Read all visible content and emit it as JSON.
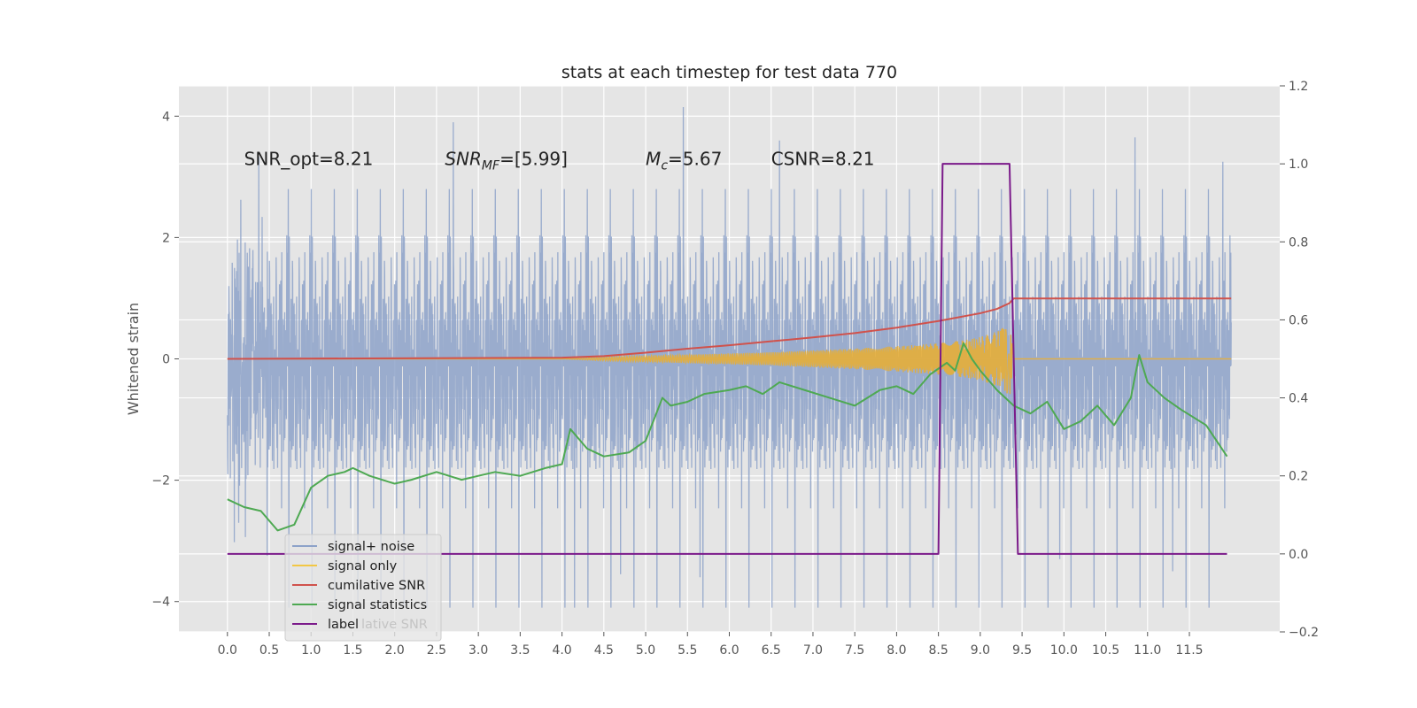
{
  "chart_data": {
    "type": "line",
    "title": "stats at each timestep for test data 770",
    "ylabel": "Whitened strain",
    "xlim": [
      -0.58,
      12.58
    ],
    "ylim": [
      -4.5,
      4.5
    ],
    "y2lim": [
      -0.2,
      1.2
    ],
    "xticks": [
      0.0,
      0.5,
      1.0,
      1.5,
      2.0,
      2.5,
      3.0,
      3.5,
      4.0,
      4.5,
      5.0,
      5.5,
      6.0,
      6.5,
      7.0,
      7.5,
      8.0,
      8.5,
      9.0,
      9.5,
      10.0,
      10.5,
      11.0,
      11.5
    ],
    "xtick_labels": [
      "0.0",
      "0.5",
      "1.0",
      "1.5",
      "2.0",
      "2.5",
      "3.0",
      "3.5",
      "4.0",
      "4.5",
      "5.0",
      "5.5",
      "6.0",
      "6.5",
      "7.0",
      "7.5",
      "8.0",
      "8.5",
      "9.0",
      "9.5",
      "10.0",
      "10.5",
      "11.0",
      "11.5"
    ],
    "yticks": [
      -4,
      -2,
      0,
      2,
      4
    ],
    "ytick_labels": [
      "−4",
      "−2",
      "0",
      "2",
      "4"
    ],
    "y2ticks": [
      -0.2,
      0.0,
      0.2,
      0.4,
      0.6,
      0.8,
      1.0,
      1.2
    ],
    "y2tick_labels": [
      "−0.2",
      "0.0",
      "0.2",
      "0.4",
      "0.6",
      "0.8",
      "1.0",
      "1.2"
    ],
    "grid": true,
    "legend_position": "lower-left",
    "annotations": [
      {
        "text": "SNR_opt=8.21",
        "x": 0.2,
        "y": 3.3
      },
      {
        "text": "SNR_MF=[5.99]",
        "x": 2.6,
        "y": 3.3
      },
      {
        "text": "M_c=5.67",
        "x": 5.0,
        "y": 3.3
      },
      {
        "text": "CSNR=8.21",
        "x": 6.5,
        "y": 3.3
      }
    ],
    "series": [
      {
        "name": "signal+ noise",
        "axis": "left",
        "color": "#8da2c9",
        "description_values": {
          "x_range": [
            0.0,
            12.0
          ],
          "typical_range": [
            -2.1,
            2.1
          ],
          "max": 4.15,
          "min": -4.1
        },
        "peaks": [
          [
            2.7,
            3.9
          ],
          [
            5.45,
            4.15
          ],
          [
            10.85,
            3.65
          ],
          [
            6.6,
            3.6
          ],
          [
            11.9,
            3.25
          ]
        ],
        "troughs": [
          [
            4.15,
            -4.1
          ],
          [
            11.3,
            -3.5
          ],
          [
            5.65,
            -3.6
          ],
          [
            4.7,
            -3.55
          ],
          [
            9.95,
            -3.3
          ]
        ]
      },
      {
        "name": "signal only",
        "axis": "left",
        "color": "#e5ae38",
        "x": [
          0.0,
          4.0,
          4.5,
          5.0,
          5.5,
          6.0,
          6.5,
          7.0,
          7.5,
          8.0,
          8.5,
          8.8,
          9.0,
          9.2,
          9.3,
          9.35,
          9.4,
          12.0
        ],
        "amplitude": [
          0.0,
          0.0,
          0.03,
          0.05,
          0.07,
          0.09,
          0.11,
          0.14,
          0.17,
          0.21,
          0.26,
          0.31,
          0.36,
          0.45,
          0.55,
          0.65,
          0.0,
          0.0
        ]
      },
      {
        "name": "cumilative SNR",
        "axis": "right",
        "color": "#d0524c",
        "x": [
          0.0,
          4.0,
          4.5,
          5.0,
          5.5,
          6.0,
          6.5,
          7.0,
          7.5,
          8.0,
          8.5,
          9.0,
          9.2,
          9.35,
          9.4,
          12.0
        ],
        "y": [
          0.5,
          0.503,
          0.507,
          0.516,
          0.526,
          0.535,
          0.545,
          0.555,
          0.566,
          0.58,
          0.597,
          0.617,
          0.628,
          0.643,
          0.655,
          0.655
        ]
      },
      {
        "name": "signal statistics",
        "axis": "right",
        "color": "#4ea952",
        "x": [
          0.0,
          0.2,
          0.4,
          0.6,
          0.8,
          1.0,
          1.2,
          1.4,
          1.5,
          1.7,
          2.0,
          2.2,
          2.5,
          2.8,
          3.0,
          3.2,
          3.5,
          3.8,
          4.0,
          4.1,
          4.3,
          4.5,
          4.8,
          5.0,
          5.2,
          5.3,
          5.5,
          5.7,
          6.0,
          6.2,
          6.4,
          6.6,
          6.9,
          7.2,
          7.5,
          7.8,
          8.0,
          8.2,
          8.4,
          8.6,
          8.7,
          8.8,
          8.9,
          9.0,
          9.2,
          9.4,
          9.6,
          9.8,
          10.0,
          10.2,
          10.4,
          10.6,
          10.8,
          10.9,
          11.0,
          11.2,
          11.4,
          11.7,
          11.95
        ],
        "y": [
          0.14,
          0.12,
          0.11,
          0.06,
          0.075,
          0.17,
          0.2,
          0.21,
          0.22,
          0.2,
          0.18,
          0.19,
          0.21,
          0.19,
          0.2,
          0.21,
          0.2,
          0.22,
          0.23,
          0.32,
          0.27,
          0.25,
          0.26,
          0.29,
          0.4,
          0.38,
          0.39,
          0.41,
          0.42,
          0.43,
          0.41,
          0.44,
          0.42,
          0.4,
          0.38,
          0.42,
          0.43,
          0.41,
          0.46,
          0.49,
          0.47,
          0.54,
          0.5,
          0.47,
          0.42,
          0.38,
          0.36,
          0.39,
          0.32,
          0.34,
          0.38,
          0.33,
          0.4,
          0.51,
          0.44,
          0.4,
          0.37,
          0.33,
          0.25
        ]
      },
      {
        "name": "label",
        "axis": "right",
        "color": "#7b1a8a",
        "x": [
          0.0,
          8.5,
          8.55,
          9.35,
          9.45,
          11.95
        ],
        "y": [
          0.0,
          0.0,
          1.0,
          1.0,
          0.0,
          0.0
        ]
      }
    ],
    "legend": [
      {
        "name": "signal+ noise",
        "color": "#8da2c9"
      },
      {
        "name": "signal only",
        "color": "#f2c744"
      },
      {
        "name": "cumilative SNR",
        "color": "#d0524c"
      },
      {
        "name": "signal statistics",
        "color": "#4ea952"
      },
      {
        "name": "label",
        "color": "#7b1a8a"
      }
    ],
    "legend_overlap_text": "lative SNR"
  },
  "colors": {
    "axes_bg": "#e5e5e5",
    "grid": "#ffffff"
  }
}
